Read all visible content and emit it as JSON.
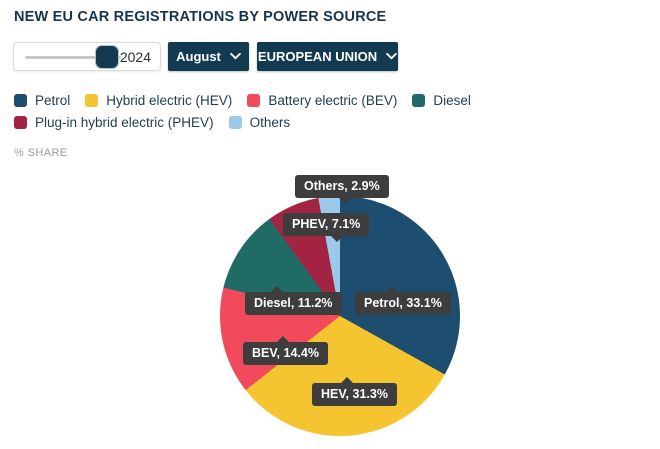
{
  "header": {
    "title": "NEW EU CAR REGISTRATIONS BY POWER SOURCE"
  },
  "controls": {
    "year_slider": {
      "value": "2024"
    },
    "month_dropdown": {
      "value": "August"
    },
    "region_dropdown": {
      "value": "EUROPEAN UNION"
    }
  },
  "axis_note": "% SHARE",
  "chart_data": {
    "type": "pie",
    "title": "NEW EU CAR REGISTRATIONS BY POWER SOURCE",
    "unit_label": "% SHARE",
    "period": "August 2024",
    "region": "EUROPEAN UNION",
    "start_angle_deg": 0,
    "direction": "clockwise",
    "legend_position": "top",
    "slices": [
      {
        "name": "Petrol",
        "legend_label": "Petrol",
        "value": 33.1,
        "color": "#1D4E6F",
        "callout": "Petrol, 33.1%"
      },
      {
        "name": "HEV",
        "legend_label": "Hybrid electric (HEV)",
        "value": 31.3,
        "color": "#F4C431",
        "callout": "HEV, 31.3%"
      },
      {
        "name": "BEV",
        "legend_label": "Battery electric (BEV)",
        "value": 14.4,
        "color": "#F04A5B",
        "callout": "BEV, 14.4%"
      },
      {
        "name": "Diesel",
        "legend_label": "Diesel",
        "value": 11.2,
        "color": "#206B64",
        "callout": "Diesel, 11.2%"
      },
      {
        "name": "PHEV",
        "legend_label": "Plug-in hybrid electric (PHEV)",
        "value": 7.1,
        "color": "#A32342",
        "callout": "PHEV, 7.1%"
      },
      {
        "name": "Others",
        "legend_label": "Others",
        "value": 2.9,
        "color": "#9CC8EA",
        "callout": "Others, 2.9%"
      }
    ],
    "tooltip_style": {
      "background": "#3D3D3D",
      "text_color": "#FFFFFF"
    }
  }
}
